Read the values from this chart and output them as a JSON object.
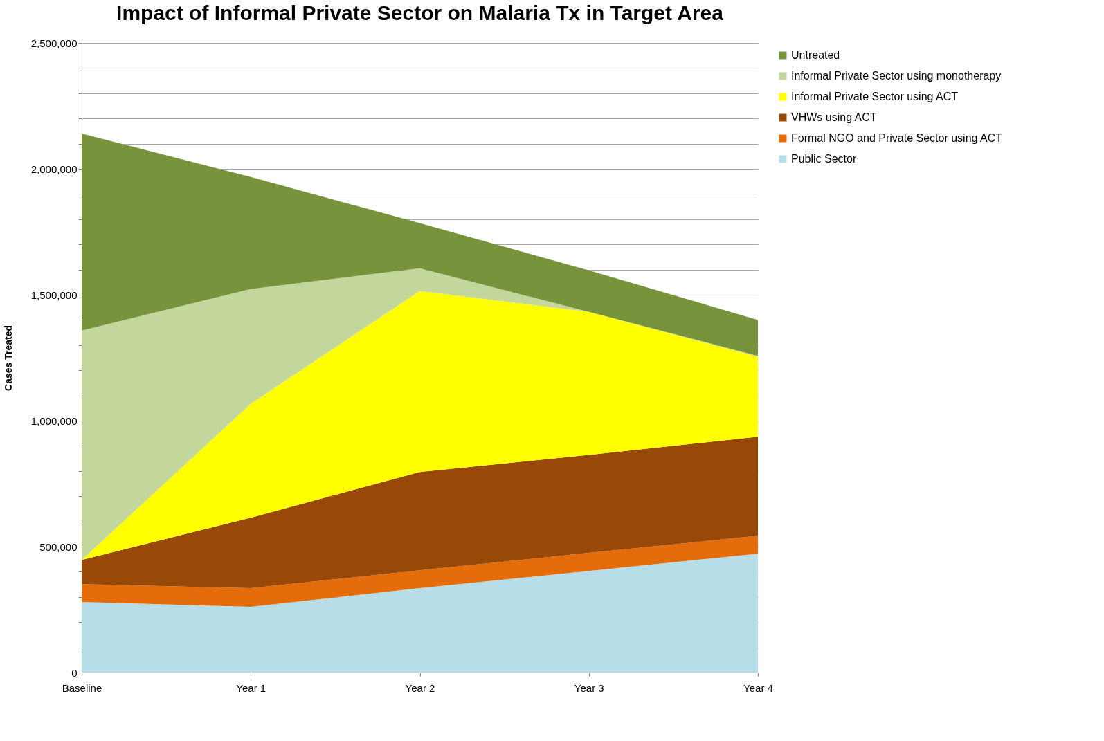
{
  "chart_data": {
    "type": "area",
    "stacked": true,
    "title": "Impact of Informal Private Sector on Malaria Tx in Target Area",
    "ylabel": "Cases Treated",
    "categories": [
      "Baseline",
      "Year 1",
      "Year 2",
      "Year 3",
      "Year 4"
    ],
    "series": [
      {
        "name": "Public Sector",
        "color": "#b7dde8",
        "values": [
          280000,
          261000,
          335000,
          403000,
          472000
        ]
      },
      {
        "name": "Formal NGO and Private Sector using ACT",
        "color": "#e46c0a",
        "values": [
          71000,
          74000,
          71000,
          72000,
          71000
        ]
      },
      {
        "name": "VHWs using ACT",
        "color": "#984807",
        "values": [
          96000,
          280000,
          390000,
          389000,
          393000
        ]
      },
      {
        "name": "Informal Private Sector using ACT",
        "color": "#ffff00",
        "values": [
          0,
          452000,
          719000,
          568000,
          318000
        ]
      },
      {
        "name": "Informal Private Sector using monotherapy",
        "color": "#c3d69b",
        "values": [
          911000,
          456000,
          90000,
          0,
          3000
        ]
      },
      {
        "name": "Untreated",
        "color": "#77933c",
        "values": [
          782000,
          445000,
          179000,
          165000,
          143000
        ]
      }
    ],
    "ylim": [
      0,
      2500000
    ],
    "yticks": [
      0,
      {
        "value": 100000,
        "label": null
      },
      {
        "value": 200000,
        "label": null
      },
      {
        "value": 300000,
        "label": null
      },
      {
        "value": 400000,
        "label": null
      },
      {
        "value": 500000,
        "label": "500,000"
      },
      {
        "value": 600000,
        "label": null
      },
      {
        "value": 700000,
        "label": null
      },
      {
        "value": 800000,
        "label": null
      },
      {
        "value": 900000,
        "label": null
      },
      {
        "value": 1000000,
        "label": "1,000,000"
      },
      {
        "value": 1100000,
        "label": null
      },
      {
        "value": 1200000,
        "label": null
      },
      {
        "value": 1300000,
        "label": null
      },
      {
        "value": 1400000,
        "label": null
      },
      {
        "value": 1500000,
        "label": "1,500,000"
      },
      {
        "value": 1600000,
        "label": null
      },
      {
        "value": 1700000,
        "label": null
      },
      {
        "value": 1800000,
        "label": null
      },
      {
        "value": 1900000,
        "label": null
      },
      {
        "value": 2000000,
        "label": "2,000,000"
      },
      {
        "value": 2100000,
        "label": null
      },
      {
        "value": 2200000,
        "label": null
      },
      {
        "value": 2300000,
        "label": null
      },
      {
        "value": 2400000,
        "label": null
      },
      {
        "value": 2500000,
        "label": "2,500,000"
      }
    ],
    "grid": "y",
    "legend": "right"
  }
}
